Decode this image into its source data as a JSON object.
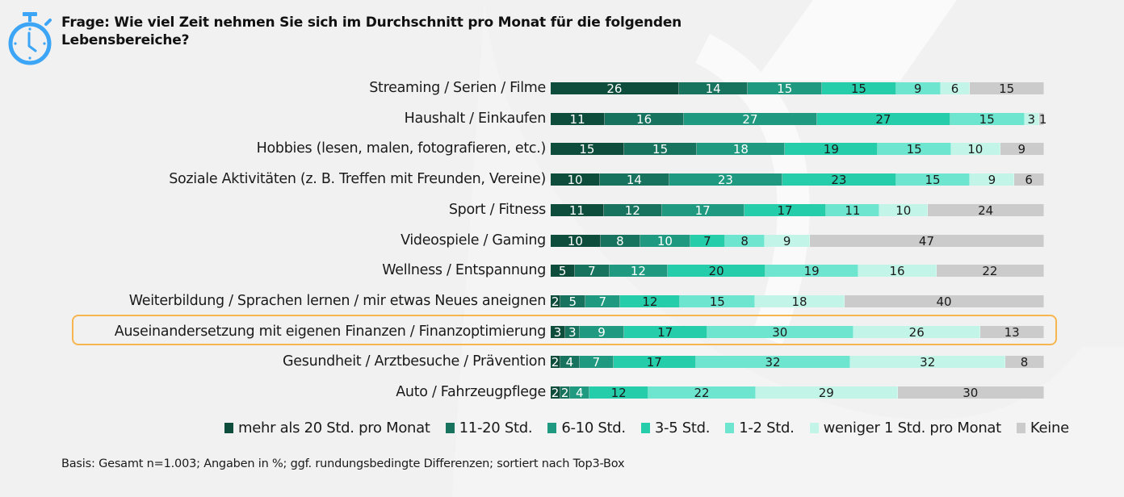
{
  "header": {
    "icon": "stopwatch-icon",
    "title": "Frage: Wie viel Zeit nehmen Sie sich im Durchschnitt pro Monat für die folgenden Lebensbereiche?"
  },
  "footnote": "Basis: Gesamt n=1.003; Angaben in %; ggf. rundungsbedingte Differenzen; sortiert nach Top3-Box",
  "highlighted_category": "Auseinandersetzung mit eigenen Finanzen / Finanzoptimierung",
  "colors": {
    "highlight_border": "#f7b550",
    "icon": "#3da5f5"
  },
  "chart_data": {
    "type": "bar",
    "orientation": "horizontal",
    "stacked": true,
    "unit": "%",
    "title": "Frage: Wie viel Zeit nehmen Sie sich im Durchschnitt pro Monat für die folgenden Lebensbereiche?",
    "xlabel": "",
    "ylabel": "",
    "xlim": [
      0,
      100
    ],
    "grid": false,
    "legend_position": "bottom",
    "categories": [
      "Streaming / Serien / Filme",
      "Haushalt / Einkaufen",
      "Hobbies (lesen, malen, fotografieren, etc.)",
      "Soziale Aktivitäten (z. B. Treffen mit Freunden, Vereine)",
      "Sport / Fitness",
      "Videospiele / Gaming",
      "Wellness / Entspannung",
      "Weiterbildung / Sprachen lernen / mir etwas Neues aneignen",
      "Auseinandersetzung mit eigenen Finanzen / Finanzoptimierung",
      "Gesundheit / Arztbesuche / Prävention",
      "Auto / Fahrzeugpflege"
    ],
    "series": [
      {
        "name": "mehr als 20 Std. pro Monat",
        "color": "#0e4d3c",
        "text_color": "#ffffff",
        "values": [
          26,
          11,
          15,
          10,
          11,
          10,
          5,
          2,
          3,
          2,
          2
        ]
      },
      {
        "name": "11-20 Std.",
        "color": "#17735e",
        "text_color": "#ffffff",
        "values": [
          14,
          16,
          15,
          14,
          12,
          8,
          7,
          5,
          3,
          4,
          2
        ]
      },
      {
        "name": "6-10 Std.",
        "color": "#1f9a80",
        "text_color": "#ffffff",
        "values": [
          15,
          27,
          18,
          23,
          17,
          10,
          12,
          7,
          9,
          7,
          4
        ]
      },
      {
        "name": "3-5 Std.",
        "color": "#26cdaa",
        "text_color": "#1a1a1a",
        "values": [
          15,
          27,
          19,
          23,
          17,
          7,
          20,
          12,
          17,
          17,
          12
        ]
      },
      {
        "name": "1-2 Std.",
        "color": "#6ee6cf",
        "text_color": "#1a1a1a",
        "values": [
          9,
          15,
          15,
          15,
          11,
          8,
          19,
          15,
          30,
          32,
          22
        ]
      },
      {
        "name": "weniger 1 Std. pro Monat",
        "color": "#c2f4e7",
        "text_color": "#1a1a1a",
        "values": [
          6,
          3,
          10,
          9,
          10,
          9,
          16,
          18,
          26,
          32,
          29
        ]
      },
      {
        "name": "Keine",
        "color": "#cbcbcb",
        "text_color": "#1a1a1a",
        "values": [
          15,
          1,
          9,
          6,
          24,
          47,
          22,
          40,
          13,
          8,
          30
        ]
      }
    ]
  }
}
